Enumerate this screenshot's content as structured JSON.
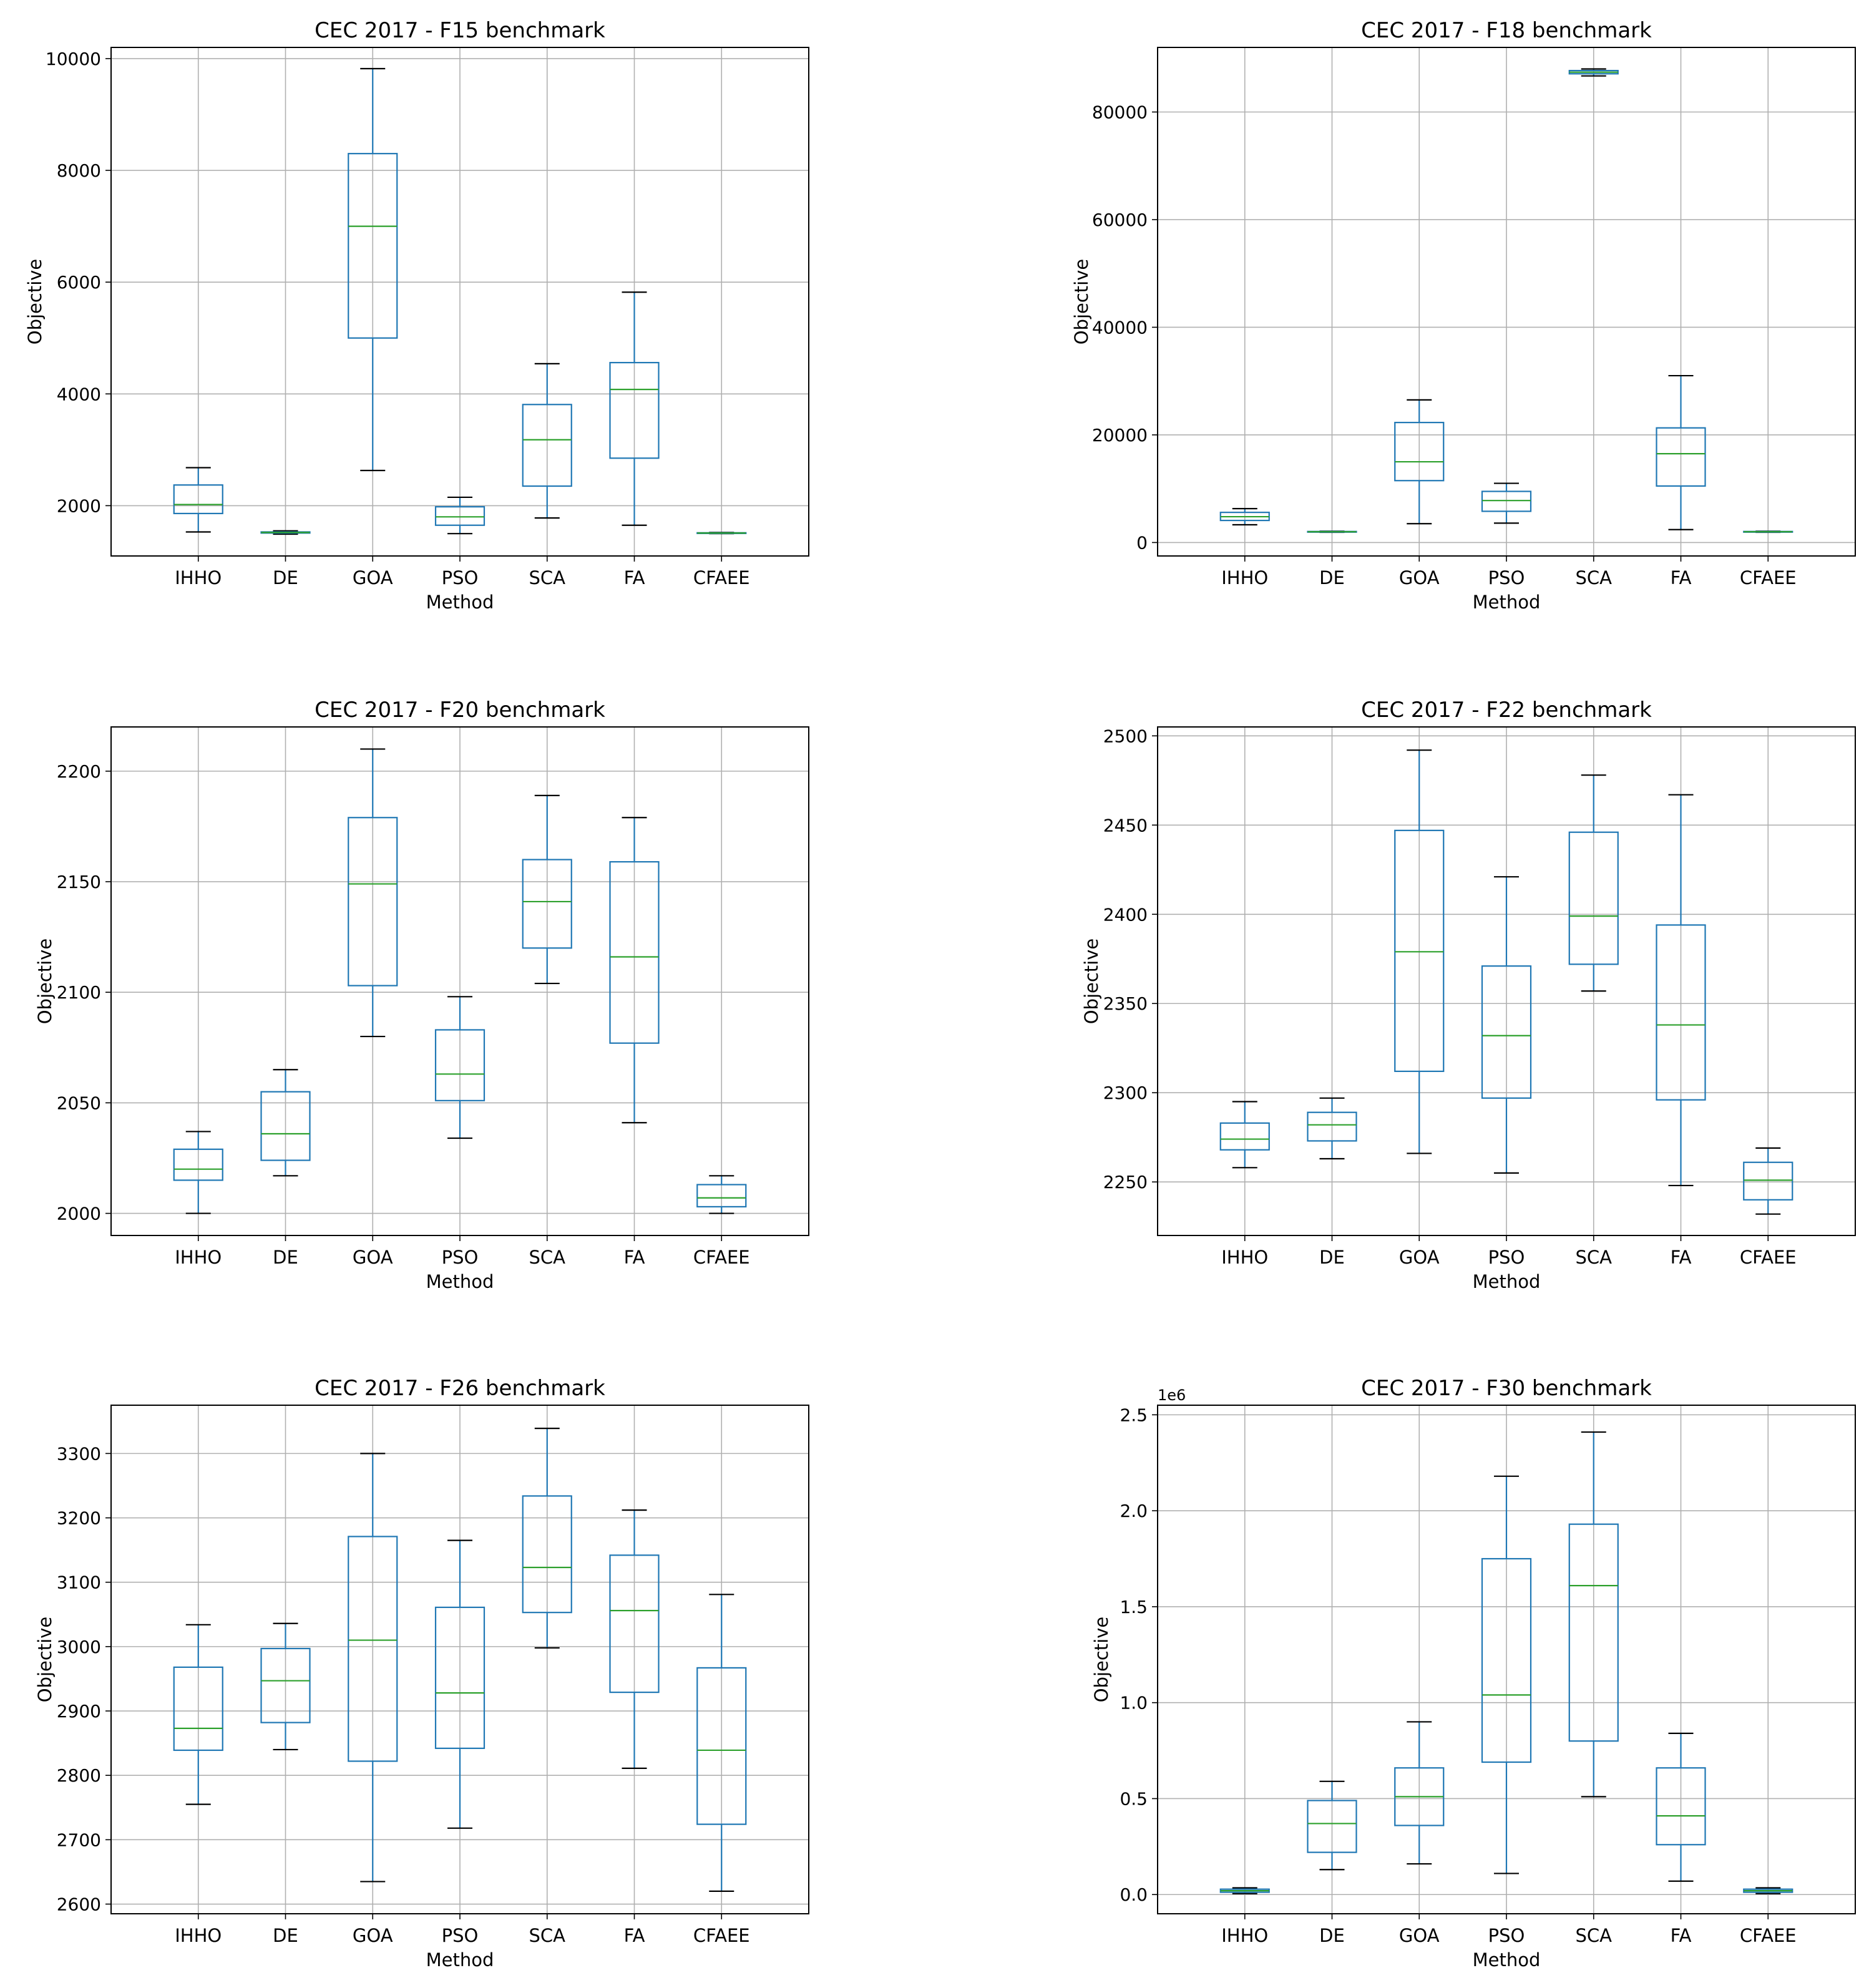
{
  "colors": {
    "box": "#1f77b4",
    "median": "#2ca02c",
    "grid": "#b0b0b0",
    "whisker_cap": "#000000",
    "axes": "#000000"
  },
  "chart_data": [
    {
      "type": "boxplot",
      "title": "CEC 2017 - F15 benchmark",
      "xlabel": "Method",
      "ylabel": "Objective",
      "ylim": [
        1100,
        10200
      ],
      "yticks": [
        2000,
        4000,
        6000,
        8000,
        10000
      ],
      "ytick_labels": [
        "2000",
        "4000",
        "6000",
        "8000",
        "10000"
      ],
      "offset_label": "",
      "grid": true,
      "categories": [
        "IHHO",
        "DE",
        "GOA",
        "PSO",
        "SCA",
        "FA",
        "CFAEE"
      ],
      "boxes": [
        {
          "whislo": 1530,
          "q1": 1860,
          "med": 2020,
          "q3": 2370,
          "whishi": 2680
        },
        {
          "whislo": 1490,
          "q1": 1510,
          "med": 1520,
          "q3": 1530,
          "whishi": 1550
        },
        {
          "whislo": 2630,
          "q1": 5000,
          "med": 7000,
          "q3": 8300,
          "whishi": 9820
        },
        {
          "whislo": 1500,
          "q1": 1650,
          "med": 1800,
          "q3": 1980,
          "whishi": 2150
        },
        {
          "whislo": 1780,
          "q1": 2350,
          "med": 3180,
          "q3": 3810,
          "whishi": 4540
        },
        {
          "whislo": 1650,
          "q1": 2850,
          "med": 4080,
          "q3": 4560,
          "whishi": 5820
        },
        {
          "whislo": 1500,
          "q1": 1505,
          "med": 1510,
          "q3": 1515,
          "whishi": 1520
        }
      ]
    },
    {
      "type": "boxplot",
      "title": "CEC 2017 - F18 benchmark",
      "xlabel": "Method",
      "ylabel": "Objective",
      "ylim": [
        -2500,
        92000
      ],
      "yticks": [
        0,
        20000,
        40000,
        60000,
        80000
      ],
      "ytick_labels": [
        "0",
        "20000",
        "40000",
        "60000",
        "80000"
      ],
      "offset_label": "",
      "grid": true,
      "categories": [
        "IHHO",
        "DE",
        "GOA",
        "PSO",
        "SCA",
        "FA",
        "CFAEE"
      ],
      "boxes": [
        {
          "whislo": 3300,
          "q1": 4100,
          "med": 4800,
          "q3": 5600,
          "whishi": 6300
        },
        {
          "whislo": 1900,
          "q1": 1950,
          "med": 2000,
          "q3": 2050,
          "whishi": 2100
        },
        {
          "whislo": 3500,
          "q1": 11500,
          "med": 15000,
          "q3": 22300,
          "whishi": 26500
        },
        {
          "whislo": 3600,
          "q1": 5800,
          "med": 7800,
          "q3": 9500,
          "whishi": 11000
        },
        {
          "whislo": 86700,
          "q1": 87100,
          "med": 87400,
          "q3": 87700,
          "whishi": 88000
        },
        {
          "whislo": 2400,
          "q1": 10500,
          "med": 16500,
          "q3": 21300,
          "whishi": 31000
        },
        {
          "whislo": 1900,
          "q1": 1950,
          "med": 2000,
          "q3": 2050,
          "whishi": 2100
        }
      ]
    },
    {
      "type": "boxplot",
      "title": "CEC 2017 - F20 benchmark",
      "xlabel": "Method",
      "ylabel": "Objective",
      "ylim": [
        1990,
        2220
      ],
      "yticks": [
        2000,
        2050,
        2100,
        2150,
        2200
      ],
      "ytick_labels": [
        "2000",
        "2050",
        "2100",
        "2150",
        "2200"
      ],
      "offset_label": "",
      "grid": true,
      "categories": [
        "IHHO",
        "DE",
        "GOA",
        "PSO",
        "SCA",
        "FA",
        "CFAEE"
      ],
      "boxes": [
        {
          "whislo": 2000,
          "q1": 2015,
          "med": 2020,
          "q3": 2029,
          "whishi": 2037
        },
        {
          "whislo": 2017,
          "q1": 2024,
          "med": 2036,
          "q3": 2055,
          "whishi": 2065
        },
        {
          "whislo": 2080,
          "q1": 2103,
          "med": 2149,
          "q3": 2179,
          "whishi": 2210
        },
        {
          "whislo": 2034,
          "q1": 2051,
          "med": 2063,
          "q3": 2083,
          "whishi": 2098
        },
        {
          "whislo": 2104,
          "q1": 2120,
          "med": 2141,
          "q3": 2160,
          "whishi": 2189
        },
        {
          "whislo": 2041,
          "q1": 2077,
          "med": 2116,
          "q3": 2159,
          "whishi": 2179
        },
        {
          "whislo": 2000,
          "q1": 2003,
          "med": 2007,
          "q3": 2013,
          "whishi": 2017
        }
      ]
    },
    {
      "type": "boxplot",
      "title": "CEC 2017 - F22 benchmark",
      "xlabel": "Method",
      "ylabel": "Objective",
      "ylim": [
        2220,
        2505
      ],
      "yticks": [
        2250,
        2300,
        2350,
        2400,
        2450,
        2500
      ],
      "ytick_labels": [
        "2250",
        "2300",
        "2350",
        "2400",
        "2450",
        "2500"
      ],
      "offset_label": "",
      "grid": true,
      "categories": [
        "IHHO",
        "DE",
        "GOA",
        "PSO",
        "SCA",
        "FA",
        "CFAEE"
      ],
      "boxes": [
        {
          "whislo": 2258,
          "q1": 2268,
          "med": 2274,
          "q3": 2283,
          "whishi": 2295
        },
        {
          "whislo": 2263,
          "q1": 2273,
          "med": 2282,
          "q3": 2289,
          "whishi": 2297
        },
        {
          "whislo": 2266,
          "q1": 2312,
          "med": 2379,
          "q3": 2447,
          "whishi": 2492
        },
        {
          "whislo": 2255,
          "q1": 2297,
          "med": 2332,
          "q3": 2371,
          "whishi": 2421
        },
        {
          "whislo": 2357,
          "q1": 2372,
          "med": 2399,
          "q3": 2446,
          "whishi": 2478
        },
        {
          "whislo": 2248,
          "q1": 2296,
          "med": 2338,
          "q3": 2394,
          "whishi": 2467
        },
        {
          "whislo": 2232,
          "q1": 2240,
          "med": 2251,
          "q3": 2261,
          "whishi": 2269
        }
      ]
    },
    {
      "type": "boxplot",
      "title": "CEC 2017 - F26 benchmark",
      "xlabel": "Method",
      "ylabel": "Objective",
      "ylim": [
        2585,
        3375
      ],
      "yticks": [
        2600,
        2700,
        2800,
        2900,
        3000,
        3100,
        3200,
        3300
      ],
      "ytick_labels": [
        "2600",
        "2700",
        "2800",
        "2900",
        "3000",
        "3100",
        "3200",
        "3300"
      ],
      "offset_label": "",
      "grid": true,
      "categories": [
        "IHHO",
        "DE",
        "GOA",
        "PSO",
        "SCA",
        "FA",
        "CFAEE"
      ],
      "boxes": [
        {
          "whislo": 2755,
          "q1": 2839,
          "med": 2873,
          "q3": 2968,
          "whishi": 3034
        },
        {
          "whislo": 2840,
          "q1": 2882,
          "med": 2947,
          "q3": 2997,
          "whishi": 3036
        },
        {
          "whislo": 2635,
          "q1": 2822,
          "med": 3010,
          "q3": 3171,
          "whishi": 3300
        },
        {
          "whislo": 2718,
          "q1": 2842,
          "med": 2928,
          "q3": 3061,
          "whishi": 3165
        },
        {
          "whislo": 2998,
          "q1": 3053,
          "med": 3123,
          "q3": 3234,
          "whishi": 3339
        },
        {
          "whislo": 2811,
          "q1": 2929,
          "med": 3056,
          "q3": 3142,
          "whishi": 3212
        },
        {
          "whislo": 2620,
          "q1": 2724,
          "med": 2839,
          "q3": 2967,
          "whishi": 3081
        }
      ]
    },
    {
      "type": "boxplot",
      "title": "CEC 2017 - F30 benchmark",
      "xlabel": "Method",
      "ylabel": "Objective",
      "ylim": [
        -0.1,
        2.55
      ],
      "yticks": [
        0.0,
        0.5,
        1.0,
        1.5,
        2.0,
        2.5
      ],
      "ytick_labels": [
        "0.0",
        "0.5",
        "1.0",
        "1.5",
        "2.0",
        "2.5"
      ],
      "offset_label": "1e6",
      "grid": true,
      "categories": [
        "IHHO",
        "DE",
        "GOA",
        "PSO",
        "SCA",
        "FA",
        "CFAEE"
      ],
      "boxes": [
        {
          "whislo": 0.005,
          "q1": 0.012,
          "med": 0.02,
          "q3": 0.028,
          "whishi": 0.035
        },
        {
          "whislo": 0.13,
          "q1": 0.22,
          "med": 0.37,
          "q3": 0.49,
          "whishi": 0.59
        },
        {
          "whislo": 0.16,
          "q1": 0.36,
          "med": 0.51,
          "q3": 0.66,
          "whishi": 0.9
        },
        {
          "whislo": 0.11,
          "q1": 0.69,
          "med": 1.04,
          "q3": 1.75,
          "whishi": 2.18
        },
        {
          "whislo": 0.51,
          "q1": 0.8,
          "med": 1.61,
          "q3": 1.93,
          "whishi": 2.41
        },
        {
          "whislo": 0.07,
          "q1": 0.26,
          "med": 0.41,
          "q3": 0.66,
          "whishi": 0.84
        },
        {
          "whislo": 0.005,
          "q1": 0.012,
          "med": 0.02,
          "q3": 0.028,
          "whishi": 0.035
        }
      ]
    }
  ]
}
